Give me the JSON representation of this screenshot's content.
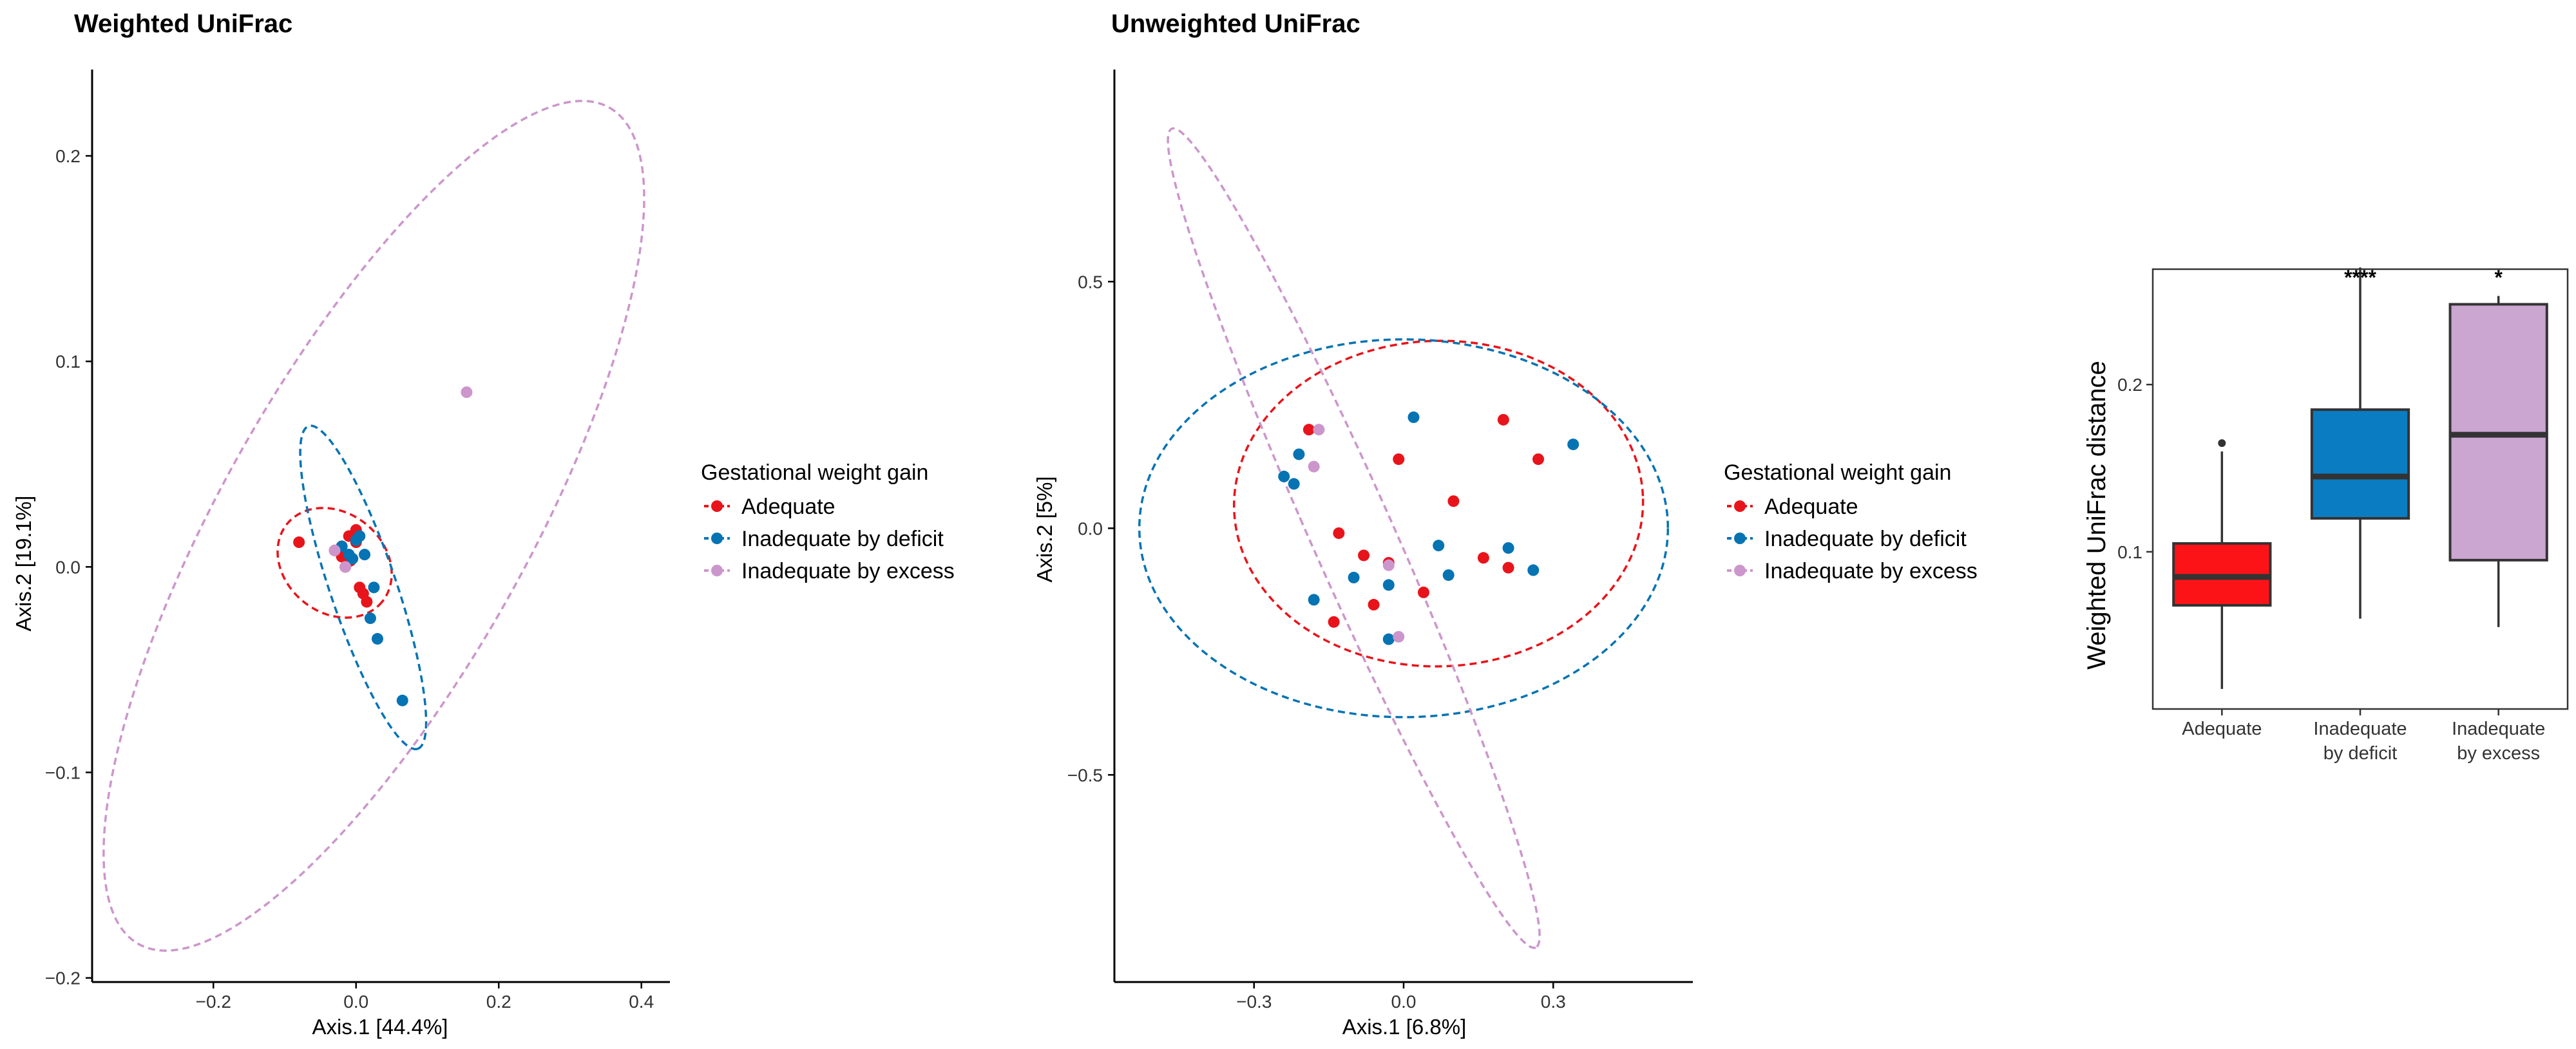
{
  "colors": {
    "adequate": "#e8141b",
    "deficit": "#0673b3",
    "excess": "#cc96cc",
    "box_adequate": "#fc1318",
    "box_deficit": "#0a7cc2",
    "box_excess": "#cba6d1",
    "axis": "#000000",
    "tick_label": "#333333"
  },
  "chart_data": [
    {
      "type": "scatter",
      "title": "Weighted UniFrac",
      "xlabel": "Axis.1   [44.4%]",
      "ylabel": "Axis.2   [19.1%]",
      "xlim": [
        -0.37,
        0.44
      ],
      "ylim": [
        -0.202,
        0.242
      ],
      "xticks": [
        -0.2,
        0.0,
        0.2,
        0.4
      ],
      "xtick_labels": [
        "−0.2",
        "0.0",
        "0.2",
        "0.4"
      ],
      "yticks": [
        -0.2,
        -0.1,
        0.0,
        0.1,
        0.2
      ],
      "ytick_labels": [
        "−0.2",
        "−0.1",
        "0.0",
        "0.1",
        "0.2"
      ],
      "grid": false,
      "legend": {
        "title": "Gestational weight gain",
        "position": "right",
        "items": [
          "Adequate",
          "Inadequate by deficit",
          "Inadequate by excess"
        ]
      },
      "series": [
        {
          "name": "Adequate",
          "color_key": "adequate",
          "points": [
            [
              -0.08,
              0.012
            ],
            [
              -0.03,
              0.008
            ],
            [
              -0.02,
              0.005
            ],
            [
              -0.01,
              0.015
            ],
            [
              0.0,
              0.012
            ],
            [
              -0.015,
              0.0
            ],
            [
              -0.008,
              0.003
            ],
            [
              0.005,
              -0.01
            ],
            [
              0.01,
              -0.013
            ],
            [
              0.015,
              -0.017
            ],
            [
              0.0,
              0.018
            ],
            [
              -0.02,
              0.01
            ]
          ]
        },
        {
          "name": "Inadequate by deficit",
          "color_key": "deficit",
          "points": [
            [
              -0.02,
              0.01
            ],
            [
              0.005,
              0.015
            ],
            [
              -0.01,
              0.006
            ],
            [
              0.012,
              0.006
            ],
            [
              0.025,
              -0.01
            ],
            [
              0.02,
              -0.025
            ],
            [
              0.03,
              -0.035
            ],
            [
              0.065,
              -0.065
            ],
            [
              -0.005,
              0.004
            ],
            [
              0.0,
              0.013
            ]
          ]
        },
        {
          "name": "Inadequate by excess",
          "color_key": "excess",
          "points": [
            [
              0.155,
              0.085
            ],
            [
              -0.03,
              0.008
            ],
            [
              -0.015,
              0.0
            ]
          ]
        }
      ],
      "ellipses": [
        {
          "series": "Adequate",
          "center": [
            -0.03,
            0.002
          ],
          "vertices": [
            [
              -0.095,
              0.02
            ],
            [
              0.038,
              -0.018
            ]
          ],
          "minor_axis_end": [
            -0.02,
            0.026
          ]
        },
        {
          "series": "Inadequate by deficit",
          "center": [
            0.01,
            -0.01
          ],
          "vertices": [
            [
              -0.065,
              0.069
            ],
            [
              0.088,
              -0.088
            ]
          ],
          "minor_axis_end": [
            0.027,
            0.005
          ]
        },
        {
          "series": "Inadequate by excess",
          "center": [
            0.025,
            0.02
          ],
          "vertices": [
            [
              -0.3,
              -0.185
            ],
            [
              0.36,
              0.222
            ]
          ],
          "minor_axis_end": [
            -0.06,
            0.088
          ]
        }
      ]
    },
    {
      "type": "scatter",
      "title": "Unweighted UniFrac",
      "xlabel": "Axis.1   [6.8%]",
      "ylabel": "Axis.2   [5%]",
      "xlim": [
        -0.58,
        0.58
      ],
      "ylim": [
        -0.92,
        0.93
      ],
      "xticks": [
        -0.3,
        0.0,
        0.3
      ],
      "xtick_labels": [
        "−0.3",
        "0.0",
        "0.3"
      ],
      "yticks": [
        -0.5,
        0.0,
        0.5
      ],
      "ytick_labels": [
        "−0.5",
        "0.0",
        "0.5"
      ],
      "grid": false,
      "legend": {
        "title": "Gestational weight gain",
        "position": "right",
        "items": [
          "Adequate",
          "Inadequate by deficit",
          "Inadequate by excess"
        ]
      },
      "series": [
        {
          "name": "Adequate",
          "color_key": "adequate",
          "points": [
            [
              -0.19,
              0.2
            ],
            [
              -0.13,
              -0.01
            ],
            [
              -0.08,
              -0.055
            ],
            [
              -0.03,
              -0.07
            ],
            [
              -0.01,
              0.14
            ],
            [
              0.04,
              -0.13
            ],
            [
              0.1,
              0.055
            ],
            [
              0.2,
              0.22
            ],
            [
              0.27,
              0.14
            ],
            [
              0.16,
              -0.06
            ],
            [
              0.21,
              -0.08
            ],
            [
              -0.06,
              -0.155
            ],
            [
              -0.14,
              -0.19
            ]
          ]
        },
        {
          "name": "Inadequate by deficit",
          "color_key": "deficit",
          "points": [
            [
              -0.24,
              0.105
            ],
            [
              -0.22,
              0.09
            ],
            [
              -0.21,
              0.15
            ],
            [
              -0.18,
              -0.145
            ],
            [
              -0.1,
              -0.1
            ],
            [
              -0.03,
              -0.115
            ],
            [
              0.02,
              0.225
            ],
            [
              0.07,
              -0.035
            ],
            [
              0.09,
              -0.095
            ],
            [
              0.21,
              -0.04
            ],
            [
              0.26,
              -0.085
            ],
            [
              0.34,
              0.17
            ],
            [
              -0.03,
              -0.225
            ]
          ]
        },
        {
          "name": "Inadequate by excess",
          "color_key": "excess",
          "points": [
            [
              -0.17,
              0.2
            ],
            [
              -0.18,
              0.125
            ],
            [
              -0.03,
              -0.075
            ],
            [
              -0.01,
              -0.22
            ]
          ]
        }
      ],
      "ellipses": [
        {
          "series": "Adequate",
          "center": [
            0.07,
            0.05
          ],
          "vertices": [
            [
              -0.39,
              0.03
            ],
            [
              0.43,
              0.05
            ]
          ],
          "minor_axis_end": [
            0.07,
            0.38
          ]
        },
        {
          "series": "Inadequate by deficit",
          "center": [
            0.0,
            0.0
          ],
          "vertices": [
            [
              -0.53,
              0.0
            ],
            [
              0.53,
              0.0
            ]
          ],
          "minor_axis_end": [
            0.0,
            0.383
          ]
        },
        {
          "series": "Inadequate by excess",
          "center": [
            -0.1,
            -0.02
          ],
          "vertices": [
            [
              -0.46,
              0.84
            ],
            [
              0.27,
              -0.82
            ]
          ],
          "minor_axis_end": [
            -0.02,
            0.0
          ]
        }
      ]
    },
    {
      "type": "box",
      "title": "",
      "xlabel": "",
      "ylabel": "Weighted UniFrac distance",
      "ylim": [
        0.006,
        0.269
      ],
      "yticks": [
        0.1,
        0.2
      ],
      "ytick_labels": [
        "0.1",
        "0.2"
      ],
      "grid": false,
      "categories": [
        {
          "label_lines": [
            "Adequate"
          ],
          "color_key": "box_adequate",
          "significance": ""
        },
        {
          "label_lines": [
            "Inadequate",
            "by deficit"
          ],
          "color_key": "box_deficit",
          "significance": "****"
        },
        {
          "label_lines": [
            "Inadequate",
            "by excess"
          ],
          "color_key": "box_excess",
          "significance": "*"
        }
      ],
      "boxes": [
        {
          "min": 0.018,
          "q1": 0.068,
          "median": 0.085,
          "q3": 0.105,
          "max": 0.16,
          "outliers": [
            0.165
          ]
        },
        {
          "min": 0.06,
          "q1": 0.12,
          "median": 0.145,
          "q3": 0.185,
          "max": 0.27,
          "outliers": []
        },
        {
          "min": 0.055,
          "q1": 0.095,
          "median": 0.17,
          "q3": 0.248,
          "max": 0.253,
          "outliers": []
        }
      ]
    }
  ]
}
